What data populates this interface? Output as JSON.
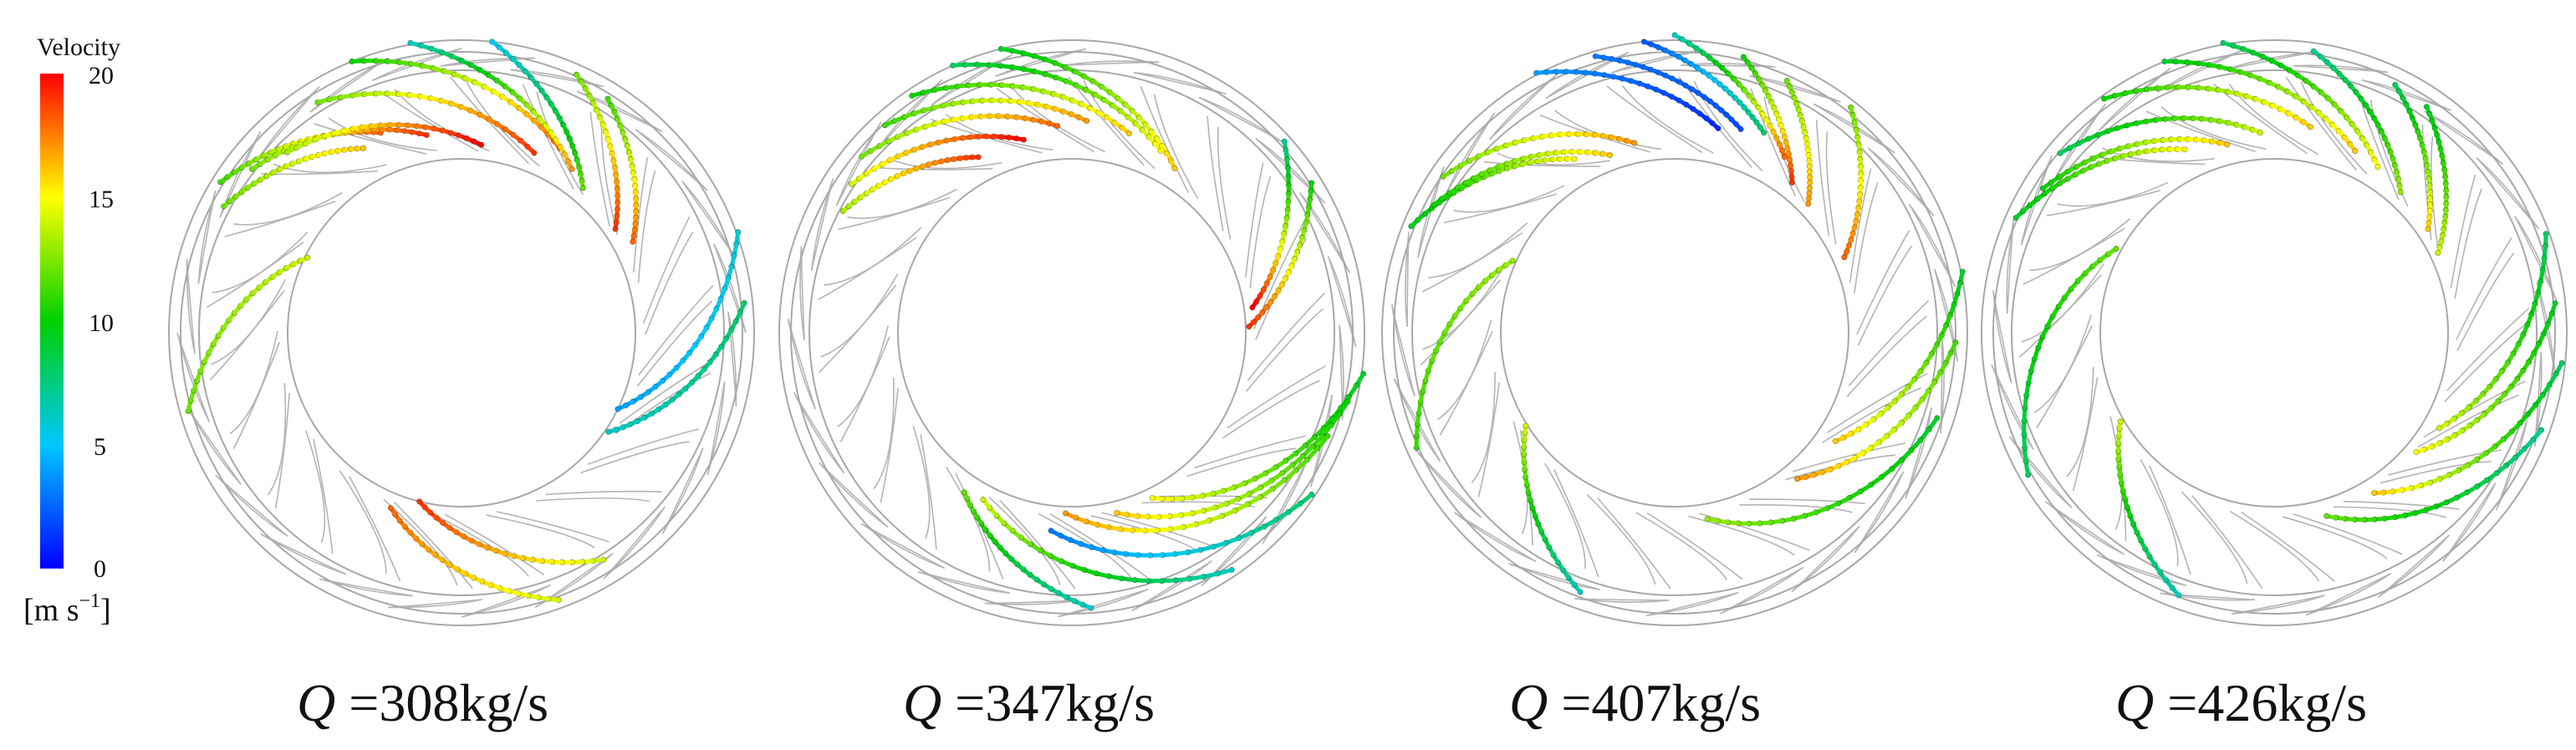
{
  "colorbar": {
    "title": "Velocity",
    "unit_base": "[m s",
    "unit_exp": "−1",
    "unit_close": "]",
    "ticks": [
      "20",
      "15",
      "10",
      "5",
      "0"
    ],
    "tick_values": [
      20,
      15,
      10,
      5,
      0
    ],
    "range": [
      0,
      20
    ],
    "colors": [
      "#0000ff",
      "#00c8ff",
      "#00d000",
      "#ffff00",
      "#ff0000"
    ]
  },
  "panels": [
    {
      "q_symbol": "Q",
      "label": " =308kg/s"
    },
    {
      "q_symbol": "Q",
      "label": " =347kg/s"
    },
    {
      "q_symbol": "Q",
      "label": " =407kg/s"
    },
    {
      "q_symbol": "Q",
      "label": " =426kg/s"
    }
  ],
  "icons": [
    "colorbar-legend",
    "streamline-trace",
    "guide-vane-ring"
  ]
}
